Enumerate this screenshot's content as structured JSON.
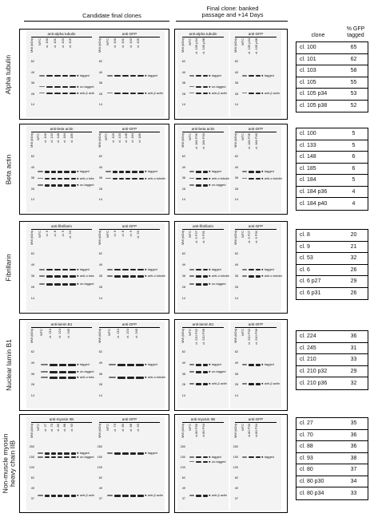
{
  "header": {
    "candidate": "Candidate final clones",
    "final_line1": "Final clone: banked",
    "final_line2": "passage and +14 Days",
    "table_clone": "clone",
    "table_pct1": "% GFP",
    "table_pct2": "tagged"
  },
  "rows": [
    {
      "label_lines": [
        "Alpha tubulin"
      ],
      "blots": [
        {
          "title": "anti-alpha tubulin",
          "lanes": [
            "MW (kDa)",
            "WTC",
            "cl. 100",
            "cl. 101",
            "cl. 103",
            "cl. 105"
          ],
          "mw": [
            "62",
            "49",
            "38",
            "28",
            "14"
          ],
          "bands": [
            {
              "lbl": "tagged",
              "t": 0.28
            },
            {
              "lbl": "un-tagged",
              "t": 0.48
            },
            {
              "lbl": "anti-β actin",
              "t": 0.6
            }
          ]
        },
        {
          "title": "anti-GFP",
          "lanes": [
            "MW (kDa)",
            "WTC",
            "cl. 100",
            "cl. 101",
            "cl. 103",
            "cl. 105"
          ],
          "mw": [
            "62",
            "49",
            "38",
            "28",
            "14"
          ],
          "bands": [
            {
              "lbl": "tagged",
              "t": 0.28
            },
            {
              "lbl": "anti-β actin",
              "t": 0.6
            }
          ]
        },
        {
          "title": "anti-alpha tubulin",
          "lanes": [
            "MW (kDa)",
            "WTC",
            "cl. 105 p34",
            "cl. 105 p38"
          ],
          "mw": [
            "62",
            "49",
            "38",
            "28",
            "14"
          ],
          "bands": [
            {
              "lbl": "tagged",
              "t": 0.28
            },
            {
              "lbl": "un-tagged",
              "t": 0.48
            },
            {
              "lbl": "anti-β actin",
              "t": 0.6
            }
          ]
        },
        {
          "title": "anti-GFP",
          "lanes": [
            "MW (kDa)",
            "WTC",
            "cl. 105 p34",
            "cl. 105 p38"
          ],
          "mw": [
            "62",
            "49",
            "38",
            "28",
            "14"
          ],
          "bands": [
            {
              "lbl": "tagged",
              "t": 0.28
            },
            {
              "lbl": "anti-β actin",
              "t": 0.6
            }
          ]
        }
      ],
      "table": [
        [
          "cl. 100",
          "65"
        ],
        [
          "cl. 101",
          "62"
        ],
        [
          "cl. 103",
          "58"
        ],
        [
          "cl. 105",
          "55"
        ],
        [
          "cl. 105 p34",
          "53"
        ],
        [
          "cl. 105 p38",
          "52"
        ]
      ]
    },
    {
      "label_lines": [
        "Beta actin"
      ],
      "blots": [
        {
          "title": "anti-beta actin",
          "lanes": [
            "MW (kDa)",
            "WTC",
            "cl. 100",
            "cl. 133",
            "cl. 148",
            "cl. 184",
            "cl. 185"
          ],
          "mw": [
            "62",
            "49",
            "38",
            "28",
            "14"
          ],
          "bands": [
            {
              "lbl": "tagged",
              "t": 0.3
            },
            {
              "lbl": "anti-α tubulin",
              "t": 0.42
            },
            {
              "lbl": "un-tagged",
              "t": 0.55
            }
          ]
        },
        {
          "title": "anti-GFP",
          "lanes": [
            "MW (kDa)",
            "WTC",
            "cl. 100",
            "cl. 133",
            "cl. 148",
            "cl. 184",
            "cl. 185"
          ],
          "mw": [
            "62",
            "49",
            "38",
            "28",
            "14"
          ],
          "bands": [
            {
              "lbl": "tagged",
              "t": 0.3
            },
            {
              "lbl": "anti-α tubulin",
              "t": 0.42
            }
          ]
        },
        {
          "title": "anti-beta actin",
          "lanes": [
            "MW (kDa)",
            "WTC",
            "cl. 184 P36",
            "cl. 184 P40"
          ],
          "mw": [
            "62",
            "49",
            "38",
            "28",
            "14"
          ],
          "bands": [
            {
              "lbl": "tagged",
              "t": 0.3
            },
            {
              "lbl": "anti-α tubulin",
              "t": 0.42
            },
            {
              "lbl": "un-tagged",
              "t": 0.55
            }
          ]
        },
        {
          "title": "anti-GFP",
          "lanes": [
            "MW (kDa)",
            "WTC",
            "cl. 184 P36",
            "cl. 184 P40"
          ],
          "mw": [
            "62",
            "49",
            "38",
            "28",
            "14"
          ],
          "bands": [
            {
              "lbl": "tagged",
              "t": 0.3
            },
            {
              "lbl": "anti-α tubulin",
              "t": 0.42
            }
          ]
        }
      ],
      "table": [
        [
          "cl. 100",
          "5"
        ],
        [
          "cl. 133",
          "5"
        ],
        [
          "cl. 148",
          "6"
        ],
        [
          "cl. 185",
          "6"
        ],
        [
          "cl. 184",
          "5"
        ],
        [
          "cl. 184 p36",
          "4"
        ],
        [
          "cl. 184 p40",
          "4"
        ]
      ]
    },
    {
      "label_lines": [
        "Fibrillarin"
      ],
      "blots": [
        {
          "title": "anti-fibrillarin",
          "lanes": [
            "MW (kDa)",
            "WTC",
            "cl. 6",
            "cl. 8",
            "cl. 9",
            "cl. 53"
          ],
          "mw": [
            "62",
            "49",
            "38",
            "28",
            "14"
          ],
          "bands": [
            {
              "lbl": "tagged",
              "t": 0.3
            },
            {
              "lbl": "anti-α tubulin",
              "t": 0.42
            },
            {
              "lbl": "un-tagged",
              "t": 0.56
            }
          ]
        },
        {
          "title": "anti-GFP",
          "lanes": [
            "MW (kDa)",
            "WTC",
            "cl. 6",
            "cl. 8",
            "cl. 9",
            "cl. 53"
          ],
          "mw": [
            "62",
            "49",
            "38",
            "28",
            "14"
          ],
          "bands": [
            {
              "lbl": "tagged",
              "t": 0.3
            },
            {
              "lbl": "anti-α tubulin",
              "t": 0.42
            }
          ]
        },
        {
          "title": "anti-fibrillarin",
          "lanes": [
            "MW (kDa)",
            "WTC",
            "cl. 6 P27",
            "cl. 6 P31"
          ],
          "mw": [
            "62",
            "49",
            "38",
            "28",
            "14"
          ],
          "bands": [
            {
              "lbl": "tagged",
              "t": 0.3
            },
            {
              "lbl": "anti-α tubulin",
              "t": 0.42
            },
            {
              "lbl": "un-tagged",
              "t": 0.56
            }
          ]
        },
        {
          "title": "anti-GFP",
          "lanes": [
            "MW (kDa)",
            "WTC",
            "cl. 6 P27",
            "cl. 6 P31"
          ],
          "mw": [
            "62",
            "49",
            "38",
            "28",
            "14"
          ],
          "bands": [
            {
              "lbl": "tagged",
              "t": 0.3
            },
            {
              "lbl": "anti-α tubulin",
              "t": 0.42
            }
          ]
        }
      ],
      "table": [
        [
          "cl. 8",
          "20"
        ],
        [
          "cl. 9",
          "21"
        ],
        [
          "cl. 53",
          "32"
        ],
        [
          "cl. 6",
          "26"
        ],
        [
          "cl. 6 p27",
          "29"
        ],
        [
          "cl. 6 p31",
          "26"
        ]
      ]
    },
    {
      "label_lines": [
        "Nuclear lamin B1"
      ],
      "blots": [
        {
          "title": "anti-lamin B1",
          "lanes": [
            "MW (kDa)",
            "WTC",
            "cl. 210",
            "cl. 224",
            "cl. 245"
          ],
          "mw": [
            "62",
            "49",
            "38",
            "28",
            "14"
          ],
          "bands": [
            {
              "lbl": "tagged",
              "t": 0.25
            },
            {
              "lbl": "un-tagged",
              "t": 0.38
            },
            {
              "lbl": "anti-α tubulin",
              "t": 0.48
            }
          ]
        },
        {
          "title": "anti-GFP",
          "lanes": [
            "MW (kDa)",
            "WTC",
            "cl. 210",
            "cl. 224",
            "cl. 245"
          ],
          "mw": [
            "62",
            "49",
            "38",
            "28",
            "14"
          ],
          "bands": [
            {
              "lbl": "tagged",
              "t": 0.25
            },
            {
              "lbl": "anti-α tubulin",
              "t": 0.48
            }
          ]
        },
        {
          "title": "anti-lamin B1",
          "lanes": [
            "MW (kDa)",
            "WTC",
            "cl. 210 P32",
            "cl. 210 P36"
          ],
          "mw": [
            "62",
            "49",
            "38",
            "28",
            "14"
          ],
          "bands": [
            {
              "lbl": "tagged",
              "t": 0.25
            },
            {
              "lbl": "un-tagged",
              "t": 0.38
            },
            {
              "lbl": "anti-β actin",
              "t": 0.6
            }
          ]
        },
        {
          "title": "anti-GFP",
          "lanes": [
            "MW (kDa)",
            "WTC",
            "cl. 210 P32",
            "cl. 210 P36"
          ],
          "mw": [
            "62",
            "49",
            "38",
            "28",
            "14"
          ],
          "bands": [
            {
              "lbl": "tagged",
              "t": 0.25
            },
            {
              "lbl": "anti-β actin",
              "t": 0.6
            }
          ]
        }
      ],
      "table": [
        [
          "cl. 224",
          "36"
        ],
        [
          "cl. 245",
          "31"
        ],
        [
          "cl. 210",
          "33"
        ],
        [
          "cl. 210 p32",
          "29"
        ],
        [
          "cl. 210 p36",
          "32"
        ]
      ]
    },
    {
      "label_lines": [
        "Non-muscle myosin",
        "heavy chain IIB"
      ],
      "blots": [
        {
          "title": "anti-myosin IIB",
          "lanes": [
            "MW (kDa)",
            "WTC",
            "cl. 27",
            "cl. 70",
            "cl. 80",
            "cl. 88",
            "cl. 93"
          ],
          "mw": [
            "250",
            "150",
            "100",
            "62",
            "49",
            "37"
          ],
          "bands": [
            {
              "lbl": "tagged",
              "t": 0.12
            },
            {
              "lbl": "un-tagged",
              "t": 0.18
            },
            {
              "lbl": "anti-β actin",
              "t": 0.8
            }
          ]
        },
        {
          "title": "anti-GFP",
          "lanes": [
            "MW (kDa)",
            "WTC",
            "cl. 70",
            "cl. 80",
            "cl. 88",
            "cl. 93"
          ],
          "mw": [
            "250",
            "150",
            "100",
            "62",
            "49",
            "37"
          ],
          "bands": [
            {
              "lbl": "tagged",
              "t": 0.12
            },
            {
              "lbl": "anti-β actin",
              "t": 0.8
            }
          ]
        },
        {
          "title": "anti-myosin IIB",
          "lanes": [
            "MW (kDa)",
            "WTC",
            "cl.80 P30",
            "cl.80 P34"
          ],
          "mw": [
            "250",
            "150",
            "100",
            "62",
            "49",
            "37"
          ],
          "bands": [
            {
              "lbl": "tagged",
              "t": 0.18
            },
            {
              "lbl": "un-tagged",
              "t": 0.25
            },
            {
              "lbl": "anti-β actin",
              "t": 0.8
            }
          ]
        },
        {
          "title": "anti-GFP",
          "lanes": [
            "MW (kDa)",
            "WTC",
            "cl.80 P30",
            "cl.80 P34"
          ],
          "mw": [
            "250",
            "150",
            "100",
            "62",
            "49",
            "37"
          ],
          "bands": [
            {
              "lbl": "tagged",
              "t": 0.18
            }
          ]
        }
      ],
      "table": [
        [
          "cl. 27",
          "35"
        ],
        [
          "cl. 70",
          "36"
        ],
        [
          "cl. 88",
          "36"
        ],
        [
          "cl. 93",
          "38"
        ],
        [
          "cl. 80",
          "37"
        ],
        [
          "cl. 80 p30",
          "34"
        ],
        [
          "cl. 80 p34",
          "33"
        ]
      ]
    }
  ]
}
